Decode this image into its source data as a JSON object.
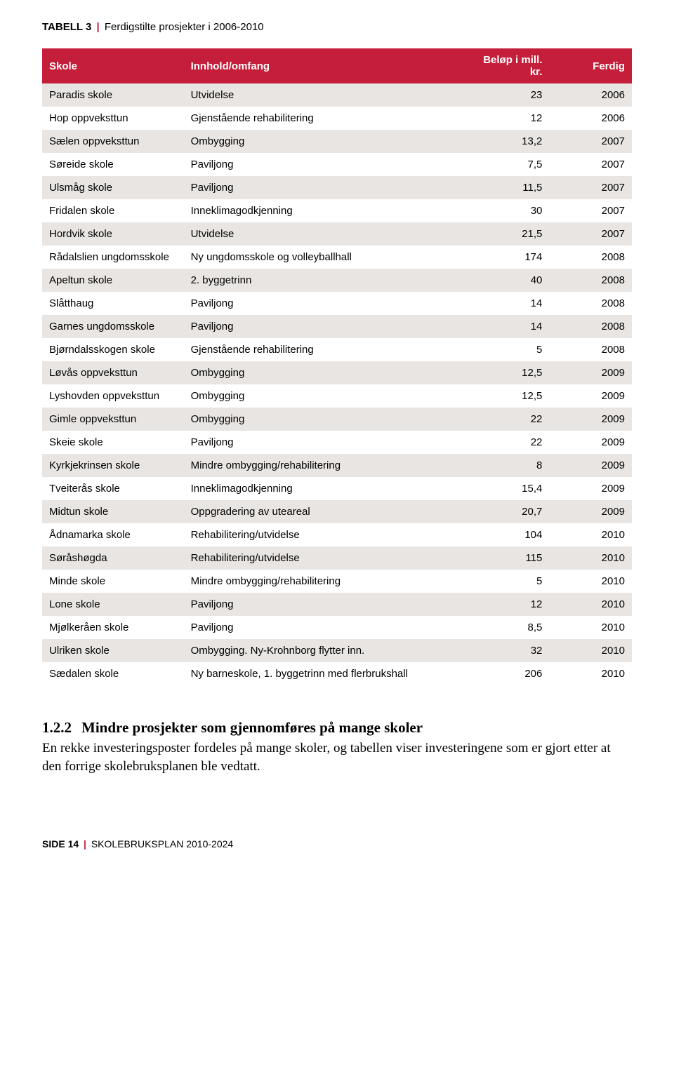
{
  "tableTitle": {
    "label": "TABELL 3",
    "separator": "|",
    "desc": "Ferdigstilte prosjekter i 2006-2010"
  },
  "headers": {
    "skole": "Skole",
    "innhold": "Innhold/omfang",
    "belop": "Beløp i mill. kr.",
    "ferdig": "Ferdig"
  },
  "rows": [
    {
      "skole": "Paradis skole",
      "innhold": "Utvidelse",
      "belop": "23",
      "ferdig": "2006"
    },
    {
      "skole": "Hop oppveksttun",
      "innhold": "Gjenstående rehabilitering",
      "belop": "12",
      "ferdig": "2006"
    },
    {
      "skole": "Sælen oppveksttun",
      "innhold": "Ombygging",
      "belop": "13,2",
      "ferdig": "2007"
    },
    {
      "skole": "Søreide skole",
      "innhold": "Paviljong",
      "belop": "7,5",
      "ferdig": "2007"
    },
    {
      "skole": "Ulsmåg skole",
      "innhold": "Paviljong",
      "belop": "11,5",
      "ferdig": "2007"
    },
    {
      "skole": "Fridalen skole",
      "innhold": "Inneklimagodkjenning",
      "belop": "30",
      "ferdig": "2007"
    },
    {
      "skole": "Hordvik skole",
      "innhold": "Utvidelse",
      "belop": "21,5",
      "ferdig": "2007"
    },
    {
      "skole": "Rådalslien ungdomsskole",
      "innhold": "Ny ungdomsskole og volleyballhall",
      "belop": "174",
      "ferdig": "2008"
    },
    {
      "skole": "Apeltun skole",
      "innhold": "2. byggetrinn",
      "belop": "40",
      "ferdig": "2008"
    },
    {
      "skole": "Slåtthaug",
      "innhold": "Paviljong",
      "belop": "14",
      "ferdig": "2008"
    },
    {
      "skole": "Garnes ungdomsskole",
      "innhold": "Paviljong",
      "belop": "14",
      "ferdig": "2008"
    },
    {
      "skole": "Bjørndalsskogen skole",
      "innhold": "Gjenstående rehabilitering",
      "belop": "5",
      "ferdig": "2008"
    },
    {
      "skole": "Løvås oppveksttun",
      "innhold": "Ombygging",
      "belop": "12,5",
      "ferdig": "2009"
    },
    {
      "skole": "Lyshovden oppveksttun",
      "innhold": "Ombygging",
      "belop": "12,5",
      "ferdig": "2009"
    },
    {
      "skole": "Gimle oppveksttun",
      "innhold": "Ombygging",
      "belop": "22",
      "ferdig": "2009"
    },
    {
      "skole": "Skeie skole",
      "innhold": "Paviljong",
      "belop": "22",
      "ferdig": "2009"
    },
    {
      "skole": "Kyrkjekrinsen skole",
      "innhold": "Mindre ombygging/rehabilitering",
      "belop": "8",
      "ferdig": "2009"
    },
    {
      "skole": "Tveiterås skole",
      "innhold": "Inneklimagodkjenning",
      "belop": "15,4",
      "ferdig": "2009"
    },
    {
      "skole": "Midtun skole",
      "innhold": "Oppgradering av uteareal",
      "belop": "20,7",
      "ferdig": "2009"
    },
    {
      "skole": "Ådnamarka skole",
      "innhold": "Rehabilitering/utvidelse",
      "belop": "104",
      "ferdig": "2010"
    },
    {
      "skole": "Søråshøgda",
      "innhold": "Rehabilitering/utvidelse",
      "belop": "115",
      "ferdig": "2010"
    },
    {
      "skole": "Minde skole",
      "innhold": "Mindre ombygging/rehabilitering",
      "belop": "5",
      "ferdig": "2010"
    },
    {
      "skole": "Lone skole",
      "innhold": "Paviljong",
      "belop": "12",
      "ferdig": "2010"
    },
    {
      "skole": "Mjølkeråen skole",
      "innhold": "Paviljong",
      "belop": "8,5",
      "ferdig": "2010"
    },
    {
      "skole": "Ulriken skole",
      "innhold": "Ombygging. Ny-Krohnborg flytter inn.",
      "belop": "32",
      "ferdig": "2010"
    },
    {
      "skole": "Sædalen skole",
      "innhold": "Ny barneskole, 1. byggetrinn med flerbrukshall",
      "belop": "206",
      "ferdig": "2010"
    }
  ],
  "section": {
    "number": "1.2.2",
    "title": "Mindre prosjekter som gjennomføres på mange skoler",
    "body": "En rekke investeringsposter fordeles på mange skoler, og tabellen viser investeringene som er gjort etter at den forrige skolebruksplanen ble vedtatt."
  },
  "footer": {
    "page": "SIDE 14",
    "separator": "|",
    "doc": "SKOLEBRUKSPLAN 2010-2024"
  },
  "colors": {
    "accent": "#c41e3a",
    "altRow": "#e8e5e2",
    "headerText": "#ffffff",
    "background": "#ffffff",
    "text": "#000000"
  }
}
